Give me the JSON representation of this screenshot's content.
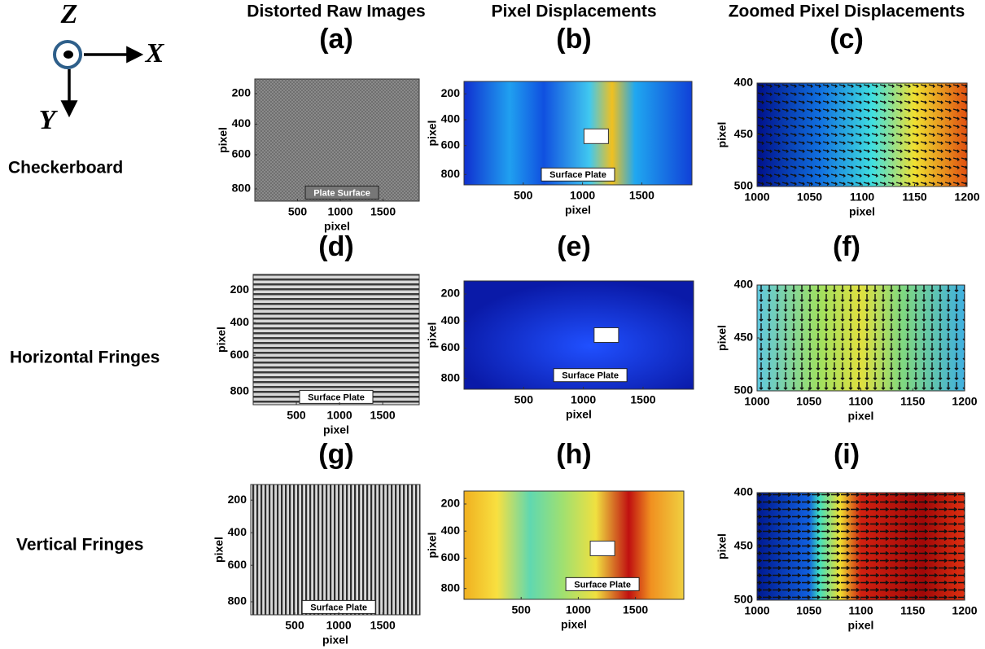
{
  "axes_icon": {
    "z": "Z",
    "x": "X",
    "y": "Y"
  },
  "columns": [
    {
      "title": "Distorted Raw Images"
    },
    {
      "title": "Pixel Displacements"
    },
    {
      "title": "Zoomed Pixel Displacements"
    }
  ],
  "rows": [
    {
      "label": "Checkerboard"
    },
    {
      "label": "Horizontal Fringes"
    },
    {
      "label": "Vertical Fringes"
    }
  ],
  "panels": [
    {
      "letter": "(a)",
      "xlabel": "pixel",
      "ylabel": "pixel",
      "xticks": [
        500,
        1000,
        1500
      ],
      "yticks": [
        200,
        400,
        600,
        800
      ],
      "annotation": "Plate Surface"
    },
    {
      "letter": "(b)",
      "xlabel": "pixel",
      "ylabel": "pixel",
      "xticks": [
        500,
        1000,
        1500
      ],
      "yticks": [
        200,
        400,
        600,
        800
      ],
      "annotation": "Surface Plate"
    },
    {
      "letter": "(c)",
      "xlabel": "pixel",
      "ylabel": "pixel",
      "xticks": [
        1000,
        1050,
        1100,
        1150,
        1200
      ],
      "yticks": [
        400,
        450,
        500
      ]
    },
    {
      "letter": "(d)",
      "xlabel": "pixel",
      "ylabel": "pixel",
      "xticks": [
        500,
        1000,
        1500
      ],
      "yticks": [
        200,
        400,
        600,
        800
      ],
      "annotation": "Surface Plate"
    },
    {
      "letter": "(e)",
      "xlabel": "pixel",
      "ylabel": "pixel",
      "xticks": [
        500,
        1000,
        1500
      ],
      "yticks": [
        200,
        400,
        600,
        800
      ],
      "annotation": "Surface Plate"
    },
    {
      "letter": "(f)",
      "xlabel": "pixel",
      "ylabel": "pixel",
      "xticks": [
        1000,
        1050,
        1100,
        1150,
        1200
      ],
      "yticks": [
        400,
        450,
        500
      ]
    },
    {
      "letter": "(g)",
      "xlabel": "pixel",
      "ylabel": "pixel",
      "xticks": [
        500,
        1000,
        1500
      ],
      "yticks": [
        200,
        400,
        600,
        800
      ],
      "annotation": "Surface Plate"
    },
    {
      "letter": "(h)",
      "xlabel": "pixel",
      "ylabel": "pixel",
      "xticks": [
        500,
        1000,
        1500
      ],
      "yticks": [
        200,
        400,
        600,
        800
      ],
      "annotation": "Surface Plate"
    },
    {
      "letter": "(i)",
      "xlabel": "pixel",
      "ylabel": "pixel",
      "xticks": [
        1000,
        1050,
        1100,
        1150,
        1200
      ],
      "yticks": [
        400,
        450,
        500
      ]
    }
  ]
}
